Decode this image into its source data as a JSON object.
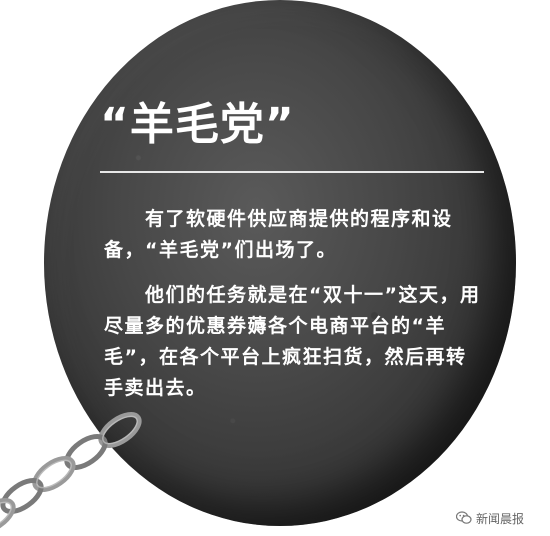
{
  "title": "“羊毛党”",
  "paragraphs": [
    "　　有了软硬件供应商提供的程序和设备，“羊毛党”们出场了。",
    "　　他们的任务就是在“双十一”这天，用尽量多的优惠券薅各个电商平台的“羊毛”，在各个平台上疯狂扫货，然后再转手卖出去。"
  ],
  "watermark": {
    "icon": "wechat-icon",
    "text": "新闻晨报"
  },
  "colors": {
    "ball": "#474747",
    "text": "#ffffff",
    "chain": "#8a8a8a"
  }
}
